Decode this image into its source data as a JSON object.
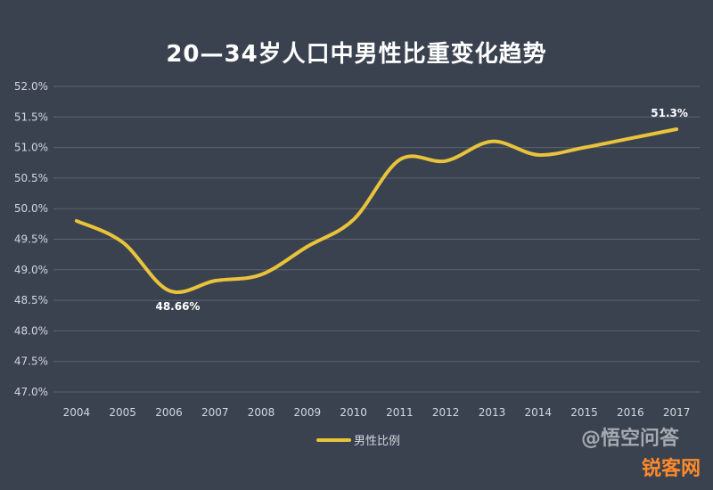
{
  "title": "20—34岁人口中男性比重变化趋势",
  "chart_data": {
    "type": "line",
    "title": "20—34岁人口中男性比重变化趋势",
    "xlabel": "",
    "ylabel": "",
    "x": [
      "2004",
      "2005",
      "2006",
      "2007",
      "2008",
      "2009",
      "2010",
      "2011",
      "2012",
      "2013",
      "2014",
      "2015",
      "2016",
      "2017"
    ],
    "series": [
      {
        "name": "男性比例",
        "color": "#e9c33a",
        "values": [
          49.8,
          49.45,
          48.66,
          48.82,
          48.92,
          49.38,
          49.82,
          50.8,
          50.78,
          51.1,
          50.88,
          51.0,
          51.15,
          51.3
        ]
      }
    ],
    "yticks": [
      "47.0%",
      "47.5%",
      "48.0%",
      "48.5%",
      "49.0%",
      "49.5%",
      "50.0%",
      "50.5%",
      "51.0%",
      "51.5%",
      "52.0%"
    ],
    "ylim": [
      47.0,
      52.0
    ],
    "grid": true,
    "legend_position": "bottom",
    "annotations": [
      {
        "x": "2006",
        "text": "48.66%"
      },
      {
        "x": "2017",
        "text": "51.3%"
      }
    ]
  },
  "watermarks": {
    "overlay_text": "@悟空问答",
    "site_text": "锐客网"
  }
}
